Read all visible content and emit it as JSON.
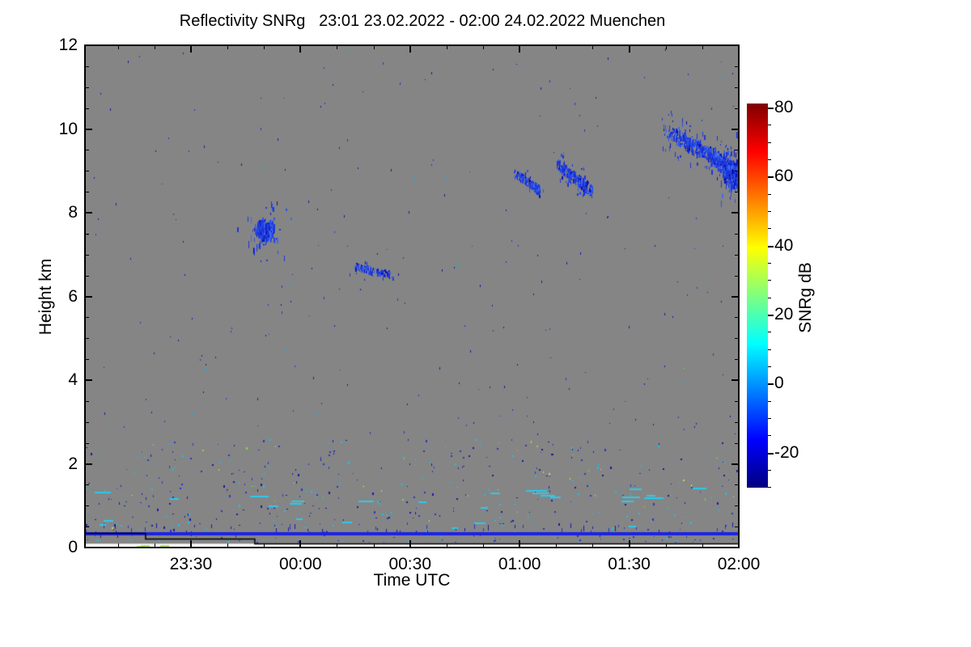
{
  "chart_data": {
    "type": "heatmap",
    "title": "Reflectivity SNRg   23:01 23.02.2022 - 02:00 24.02.2022 Muenchen",
    "instrument_quantity": "Reflectivity SNRg",
    "time_start": "23:01 23.02.2022",
    "time_end": "02:00 24.02.2022",
    "station": "Muenchen",
    "xlabel": "Time UTC",
    "ylabel": "Height km",
    "x_axis": {
      "total_min": 179,
      "minor_step_min": 10,
      "first_minor_min": 9,
      "ticks": [
        {
          "label": "23:30",
          "t_min": 29
        },
        {
          "label": "00:00",
          "t_min": 59
        },
        {
          "label": "00:30",
          "t_min": 89
        },
        {
          "label": "01:00",
          "t_min": 119
        },
        {
          "label": "01:30",
          "t_min": 149
        },
        {
          "label": "02:00",
          "t_min": 179
        }
      ]
    },
    "y_axis": {
      "range_km": [
        0,
        12
      ],
      "tick_labels": [
        "0",
        "2",
        "4",
        "6",
        "8",
        "10",
        "12"
      ],
      "tick_values": [
        0,
        2,
        4,
        6,
        8,
        10,
        12
      ],
      "minor_step_km": 0.5
    },
    "colorbar": {
      "label": "SNRg dB",
      "tick_labels": [
        "80",
        "60",
        "40",
        "20",
        "0",
        "-20"
      ],
      "tick_values": [
        80,
        60,
        40,
        20,
        0,
        -20
      ],
      "minor_step": 5,
      "range": [
        -30.2,
        81.2
      ],
      "colormap": "jet",
      "stops_top_to_bottom": [
        "#7F0000",
        "#FF0000",
        "#FF7F00",
        "#FFFF00",
        "#7FFF7F",
        "#00FFFF",
        "#007FFF",
        "#0000FF",
        "#00007F"
      ]
    },
    "background": {
      "no_signal_color": "#858585",
      "no_data_color": "#FFFFFF",
      "no_data_below_km": 0.09
    },
    "ground_return_line": {
      "height_km": 0.33,
      "color": "#1C22E2",
      "thickness_px": 4
    },
    "terrain_step_line": {
      "color": "#000000",
      "segments": [
        {
          "t_min": [
            0,
            16.6
          ],
          "height_km": 0.35
        },
        {
          "t_min": [
            16.6,
            46.5
          ],
          "height_km": 0.21
        },
        {
          "t_min": [
            46.5,
            179
          ],
          "height_km": 0.09
        }
      ]
    },
    "cloud_features": [
      {
        "shape": "blob",
        "n": 380,
        "t_c": 49.3,
        "h_c": 7.62,
        "sig_t": 1.9,
        "sig_h": 0.17,
        "tall": [
          2,
          9
        ],
        "note": "compact cloud ~23:45-23:56 at 7.2-8.0 km"
      },
      {
        "shape": "streak",
        "n": 130,
        "t0": 74,
        "h0": 6.74,
        "t1": 84.5,
        "h1": 6.52,
        "jt": 1.2,
        "jh": 0.07,
        "tall": [
          2,
          5
        ],
        "bias": 1.0,
        "note": "small patch ~00:15-00:26 at 6.4-6.85 km"
      },
      {
        "shape": "streak",
        "n": 170,
        "t0": 117.5,
        "h0": 8.98,
        "t1": 124.5,
        "h1": 8.56,
        "jt": 0.8,
        "jh": 0.1,
        "tall": [
          2,
          5
        ],
        "bias": 1.3,
        "note": "descending streak ~00:58-01:06 at 8.5-9.0 km"
      },
      {
        "shape": "streak",
        "n": 240,
        "t0": 129.3,
        "h0": 9.22,
        "t1": 138.6,
        "h1": 8.52,
        "jt": 0.9,
        "jh": 0.12,
        "tall": [
          2,
          6
        ],
        "bias": 1.2,
        "note": "descending streak ~01:10-01:20 at 8.4-9.3 km"
      },
      {
        "shape": "streak",
        "n": 650,
        "t0": 158,
        "h0": 10.05,
        "t1": 179,
        "h1": 9.0,
        "jt": 1.2,
        "jh": 0.16,
        "tall": [
          2,
          7
        ],
        "bias": 1.6,
        "note": "large descending band ~01:40-02:00 from 10.1 down to 9.0 km"
      },
      {
        "shape": "blob",
        "n": 320,
        "t_c": 177.5,
        "h_c": 8.95,
        "sig_t": 1.5,
        "sig_h": 0.22,
        "tall": [
          3,
          10
        ],
        "note": "dense core at right edge ~02:00 at 8.5-9.3 km"
      }
    ],
    "cloud_colors": {
      "#1F35D8": 0.45,
      "#2A52E8": 0.3,
      "#0A10B4": 0.15,
      "#3A6CF0": 0.1
    },
    "speckle_regions": [
      {
        "n": 230,
        "t": [
          0,
          179
        ],
        "h": [
          2.6,
          12
        ],
        "colors": {
          "#1A1AA6": 0.5,
          "#2438C8": 0.4,
          "#15B8D8": 0.07,
          "#8CD44C": 0.03
        },
        "w": [
          1,
          1
        ],
        "ht": [
          1,
          3
        ]
      },
      {
        "n": 430,
        "t": [
          0,
          179
        ],
        "h": [
          0.35,
          2.6
        ],
        "colors": {
          "#1A1AA6": 0.33,
          "#2438C8": 0.3,
          "#22BEE0": 0.27,
          "#8CD44C": 0.07,
          "#D8D840": 0.03
        },
        "w": [
          1,
          2
        ],
        "ht": [
          1,
          3
        ]
      },
      {
        "n": 70,
        "t": [
          0,
          179
        ],
        "h": [
          0.12,
          0.33
        ],
        "colors": {
          "#2438C8": 0.5,
          "#22BEE0": 0.5
        },
        "w": [
          1,
          2
        ],
        "ht": [
          1,
          2
        ]
      },
      {
        "n": 55,
        "t": [
          0,
          179
        ],
        "h": [
          0.33,
          0.6
        ],
        "colors": {
          "#1A1AA6": 0.6,
          "#2438C8": 0.4
        },
        "w": [
          1,
          1
        ],
        "ht": [
          3,
          7
        ]
      }
    ],
    "dash_rows": [
      {
        "n": 20,
        "t": [
          2,
          177
        ],
        "h": [
          0.95,
          1.45
        ],
        "len": [
          8,
          26
        ],
        "color": "#2FC8E8"
      },
      {
        "n": 7,
        "t": [
          2,
          150
        ],
        "h": [
          0.45,
          0.75
        ],
        "len": [
          6,
          18
        ],
        "color": "#2FC8E8"
      },
      {
        "n": 3,
        "t": [
          1,
          8
        ],
        "h": [
          0.3,
          0.4
        ],
        "len": [
          4,
          10
        ],
        "color": "#2FC8E8"
      },
      {
        "n": 3,
        "t": [
          13,
          45
        ],
        "h": [
          0.03,
          0.06
        ],
        "len": [
          5,
          12
        ],
        "color": "#A8E048"
      }
    ],
    "render_seed": 1337
  }
}
